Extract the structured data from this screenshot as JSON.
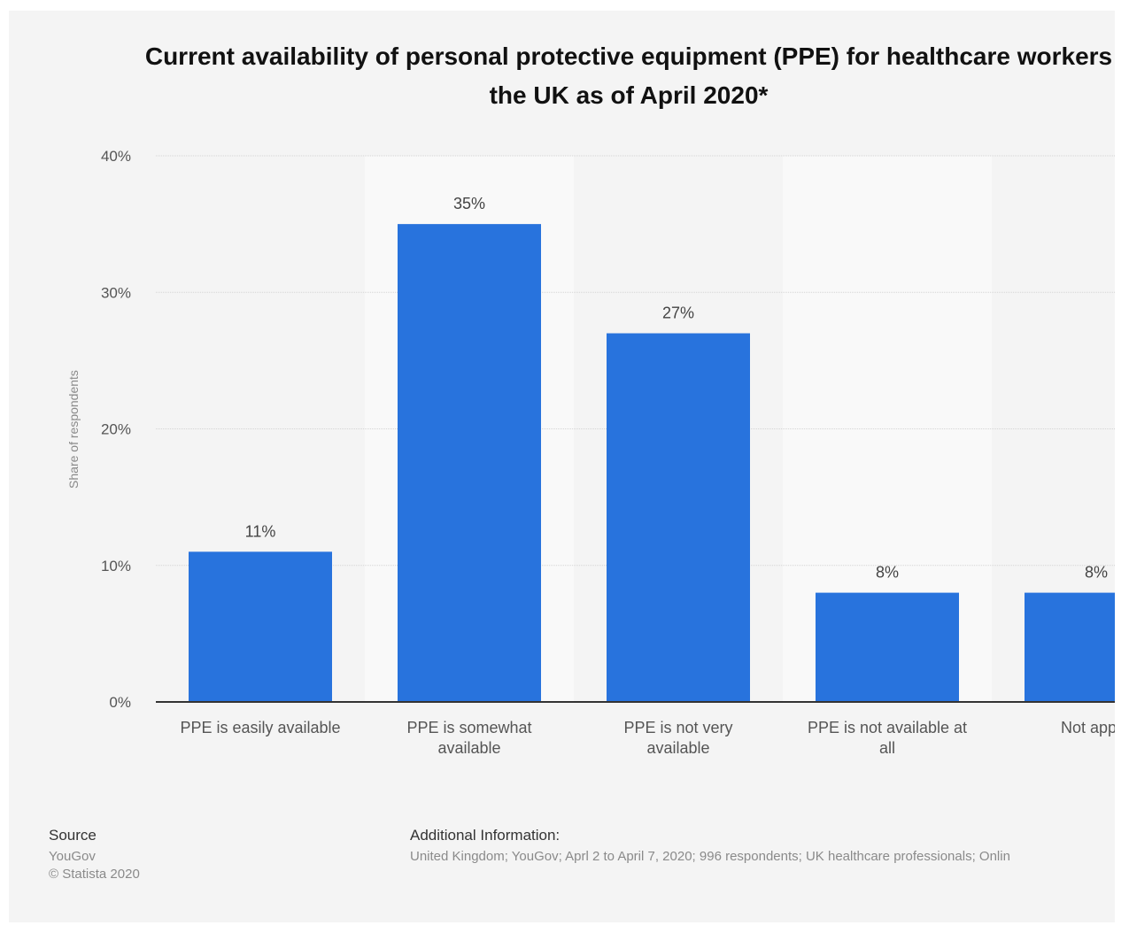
{
  "chart_data": {
    "type": "bar",
    "title_line1": "Current availability of personal protective equipment (PPE) for healthcare workers",
    "title_line2": "the UK as of April 2020*",
    "ylabel": "Share of respondents",
    "ylim": [
      0,
      40
    ],
    "yticks": [
      "0%",
      "10%",
      "20%",
      "30%",
      "40%"
    ],
    "ytick_values": [
      0,
      10,
      20,
      30,
      40
    ],
    "categories": [
      [
        "PPE is easily available"
      ],
      [
        "PPE is somewhat",
        "available"
      ],
      [
        "PPE is not very",
        "available"
      ],
      [
        "PPE is not available at",
        "all"
      ],
      [
        "Not applic"
      ]
    ],
    "values": [
      11,
      35,
      27,
      8,
      8
    ],
    "value_labels": [
      "11%",
      "35%",
      "27%",
      "8%",
      "8%"
    ],
    "bar_color": "#2873dd",
    "grid": true
  },
  "footer": {
    "source_heading": "Source",
    "source_name": "YouGov",
    "copyright": "© Statista 2020",
    "info_heading": "Additional Information:",
    "info_text": "United Kingdom; YouGov; Aprl 2 to April 7, 2020; 996 respondents; UK healthcare professionals; Onlin"
  }
}
